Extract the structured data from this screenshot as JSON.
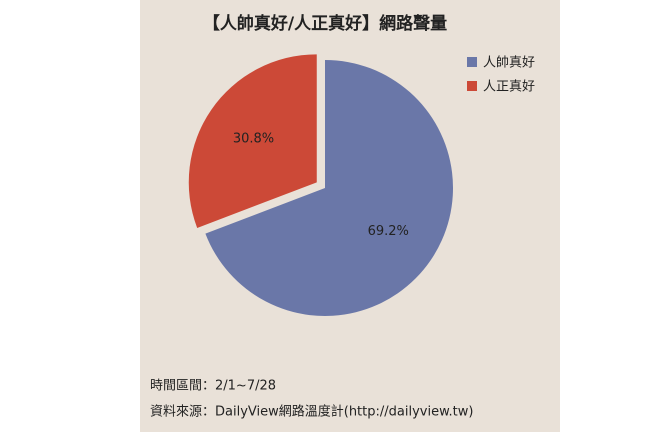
{
  "chart_data": {
    "type": "pie",
    "title": "【人帥真好/人正真好】網路聲量",
    "categories": [
      "人帥真好",
      "人正真好"
    ],
    "values": [
      69.2,
      30.8
    ],
    "value_labels": [
      "69.2%",
      "30.8%"
    ],
    "colors": [
      "#6a77a8",
      "#cc4937"
    ],
    "legend": "top-right"
  },
  "footer": [
    "時間區間：2/1~7/28",
    "資料來源：DailyView網路溫度計(http://dailyview.tw)"
  ]
}
